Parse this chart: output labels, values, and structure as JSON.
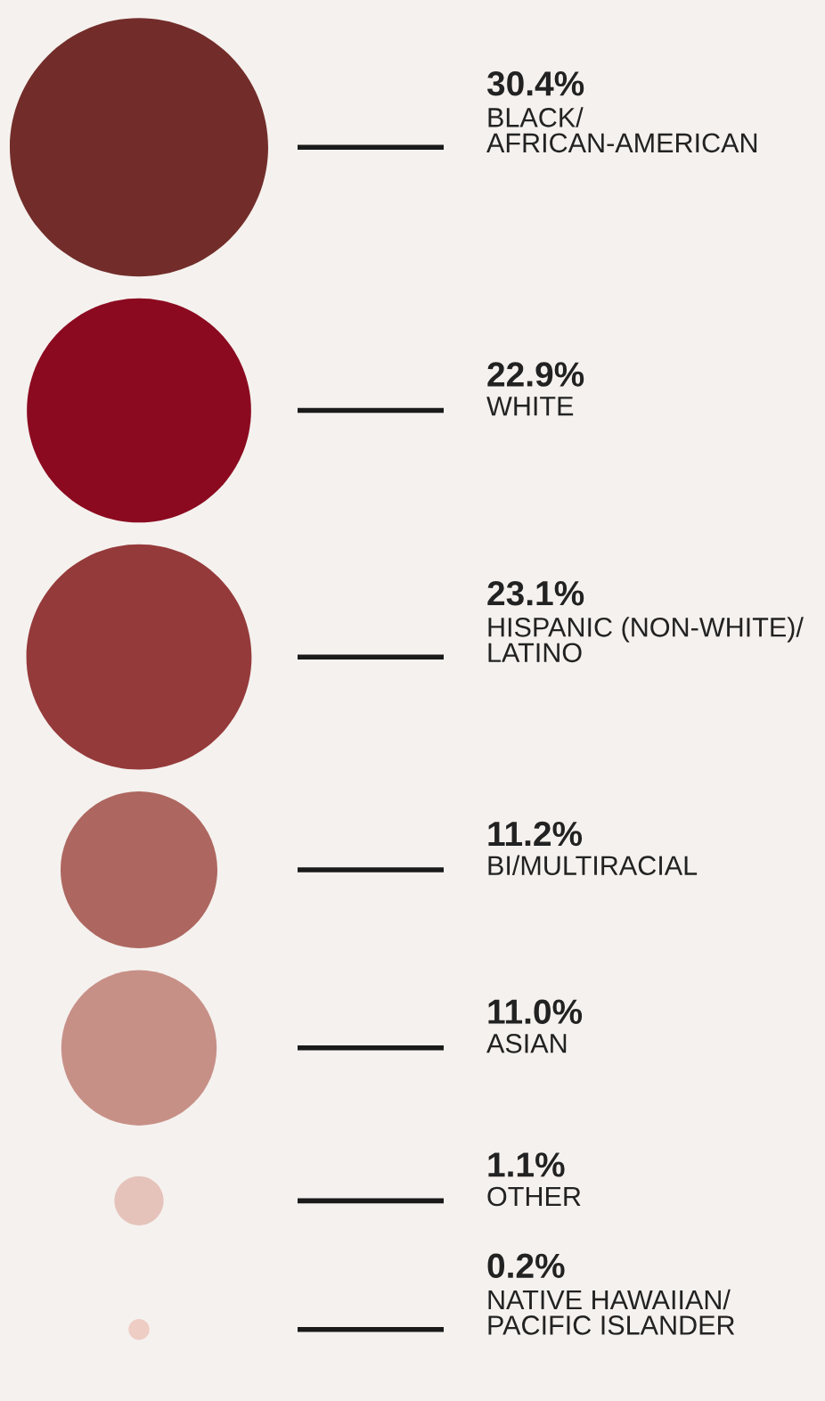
{
  "chart_data": {
    "type": "other",
    "categories": [
      "BLACK/\nAFRICAN-AMERICAN",
      "WHITE",
      "HISPANIC (NON-WHITE)/\nLATINO",
      "BI/MULTIRACIAL",
      "ASIAN",
      "OTHER",
      "NATIVE HAWAIIAN/\nPACIFIC ISLANDER"
    ],
    "values": [
      30.4,
      22.9,
      23.1,
      11.2,
      11.0,
      1.1,
      0.2
    ],
    "value_labels": [
      "30.4%",
      "22.9%",
      "23.1%",
      "11.2%",
      "11.0%",
      "1.1%",
      "0.2%"
    ],
    "colors": [
      "#722d2a",
      "#8b0a20",
      "#953a3b",
      "#ad6760",
      "#c79087",
      "#e5c3bb",
      "#eecdc5"
    ]
  }
}
